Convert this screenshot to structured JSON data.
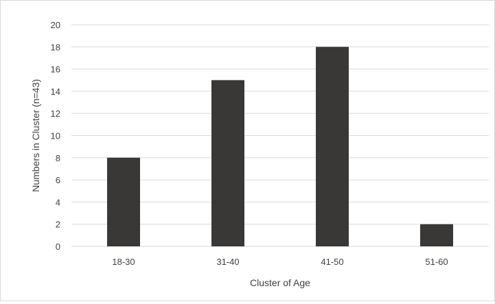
{
  "chart_data": {
    "type": "bar",
    "categories": [
      "18-30",
      "31-40",
      "41-50",
      "51-60"
    ],
    "values": [
      8,
      15,
      18,
      2
    ],
    "xlabel": "Cluster of Age",
    "ylabel": "Numbers in Cluster (n=43)",
    "ylim": [
      0,
      20
    ],
    "yticks": [
      "0",
      "2",
      "4",
      "6",
      "8",
      "10",
      "12",
      "14",
      "16",
      "18",
      "20"
    ],
    "grid": true,
    "legend": "none",
    "bar_color": "#3a3836",
    "grid_color": "#d9d9d9",
    "text_color": "#404040"
  }
}
